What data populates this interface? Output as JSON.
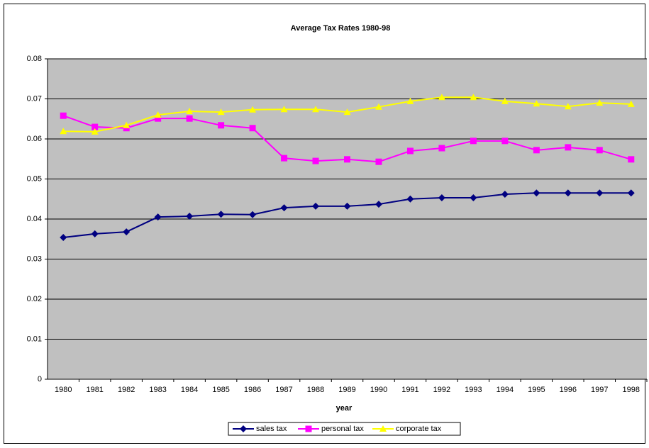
{
  "chart_data": {
    "type": "line",
    "title": "Average Tax Rates 1980-98",
    "x_label": "year",
    "categories": [
      "1980",
      "1981",
      "1982",
      "1983",
      "1984",
      "1985",
      "1986",
      "1987",
      "1988",
      "1989",
      "1990",
      "1991",
      "1992",
      "1993",
      "1994",
      "1995",
      "1996",
      "1997",
      "1998"
    ],
    "series": [
      {
        "name": "sales tax",
        "color": "#000080",
        "marker": "diamond",
        "values": [
          0.0354,
          0.0363,
          0.0368,
          0.0405,
          0.0407,
          0.0412,
          0.0411,
          0.0428,
          0.0432,
          0.0432,
          0.0437,
          0.045,
          0.0453,
          0.0453,
          0.0462,
          0.0465,
          0.0465,
          0.0465,
          0.0465
        ]
      },
      {
        "name": "personal tax",
        "color": "#ff00ff",
        "marker": "square",
        "values": [
          0.0658,
          0.063,
          0.0627,
          0.0651,
          0.0651,
          0.0634,
          0.0627,
          0.0552,
          0.0545,
          0.0549,
          0.0543,
          0.057,
          0.0577,
          0.0595,
          0.0595,
          0.0572,
          0.0579,
          0.0572,
          0.0549
        ]
      },
      {
        "name": "corporate tax",
        "color": "#ffff00",
        "marker": "triangle",
        "values": [
          0.0619,
          0.0618,
          0.0634,
          0.066,
          0.0669,
          0.0667,
          0.0673,
          0.0674,
          0.0674,
          0.0667,
          0.068,
          0.0694,
          0.0704,
          0.0704,
          0.0694,
          0.0688,
          0.0681,
          0.069,
          0.0687
        ]
      }
    ],
    "ylim": [
      0,
      0.08
    ],
    "yticks": [
      0,
      0.01,
      0.02,
      0.03,
      0.04,
      0.05,
      0.06,
      0.07,
      0.08
    ],
    "grid": true,
    "legend": "bottom",
    "plot_background": "#c0c0c0"
  }
}
